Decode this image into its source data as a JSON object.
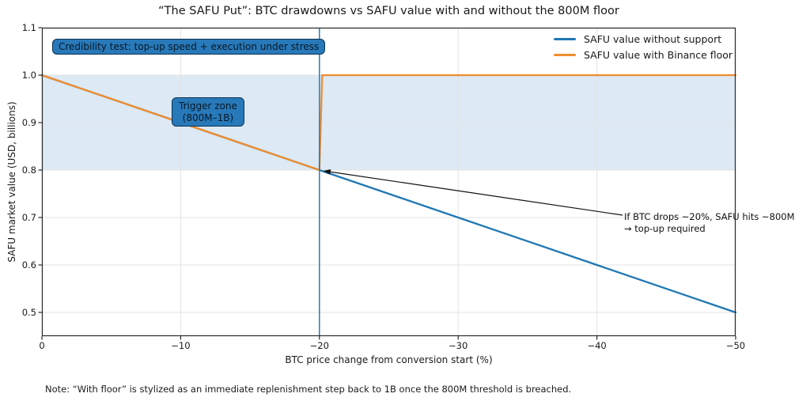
{
  "title": "“The SAFU Put”: BTC drawdowns vs SAFU value with and without the 800M floor",
  "note": "Note: “With floor” is stylized as an immediate replenishment step back to 1B once the 800M threshold is breached.",
  "axes": {
    "xlabel": "BTC price change from conversion start (%)",
    "ylabel": "SAFU market value (USD, billions)",
    "x_tick_labels": [
      "0",
      "−10",
      "−20",
      "−30",
      "−40",
      "−50"
    ],
    "x_tick_values": [
      0,
      -10,
      -20,
      -30,
      -40,
      -50
    ],
    "y_tick_labels": [
      "0.5",
      "0.6",
      "0.7",
      "0.8",
      "0.9",
      "1.0",
      "1.1"
    ],
    "y_tick_values": [
      0.5,
      0.6,
      0.7,
      0.8,
      0.9,
      1.0,
      1.1
    ],
    "xlim": [
      0,
      -50
    ],
    "ylim": [
      0.45,
      1.1
    ],
    "grid": true,
    "grid_color": "#e3e3e3",
    "spine_color": "#2b2b2b"
  },
  "legend": {
    "position": "upper right",
    "items": [
      {
        "label": "SAFU value without support",
        "color": "#1f77b4"
      },
      {
        "label": "SAFU value with Binance floor",
        "color": "#f08c2e"
      }
    ]
  },
  "chart_data": {
    "type": "line",
    "xlabel": "BTC price change from conversion start (%)",
    "ylabel": "SAFU market value (USD, billions)",
    "xlim": [
      0,
      -50
    ],
    "ylim": [
      0.45,
      1.1
    ],
    "series": [
      {
        "name": "SAFU value without support",
        "color": "#1f77b4",
        "points": [
          [
            0,
            1.0
          ],
          [
            -10,
            0.9
          ],
          [
            -20,
            0.8
          ],
          [
            -30,
            0.7
          ],
          [
            -40,
            0.6
          ],
          [
            -50,
            0.5
          ]
        ]
      },
      {
        "name": "SAFU value with Binance floor",
        "color": "#f08c2e",
        "points": [
          [
            0,
            1.0
          ],
          [
            -20,
            0.8
          ],
          [
            -20.2,
            1.0
          ],
          [
            -50,
            1.0
          ]
        ]
      }
    ],
    "shaded_band": {
      "y0": 0.8,
      "y1": 1.0,
      "color": "#dde9f4",
      "meaning": "Trigger zone (800M–1B)"
    },
    "vline": {
      "x": -20,
      "color": "#1f77b4",
      "opacity": 0.9
    }
  },
  "annotations": {
    "credibility_box": "Credibility test: top-up speed + execution under stress",
    "trigger_zone_line1": "Trigger zone",
    "trigger_zone_line2": "(800M–1B)",
    "arrow_line1": "If BTC drops ~20%, SAFU hits ~800M",
    "arrow_line2": "→ top-up required",
    "arrow_target": [
      -20,
      0.8
    ],
    "arrow_color": "#111111"
  }
}
